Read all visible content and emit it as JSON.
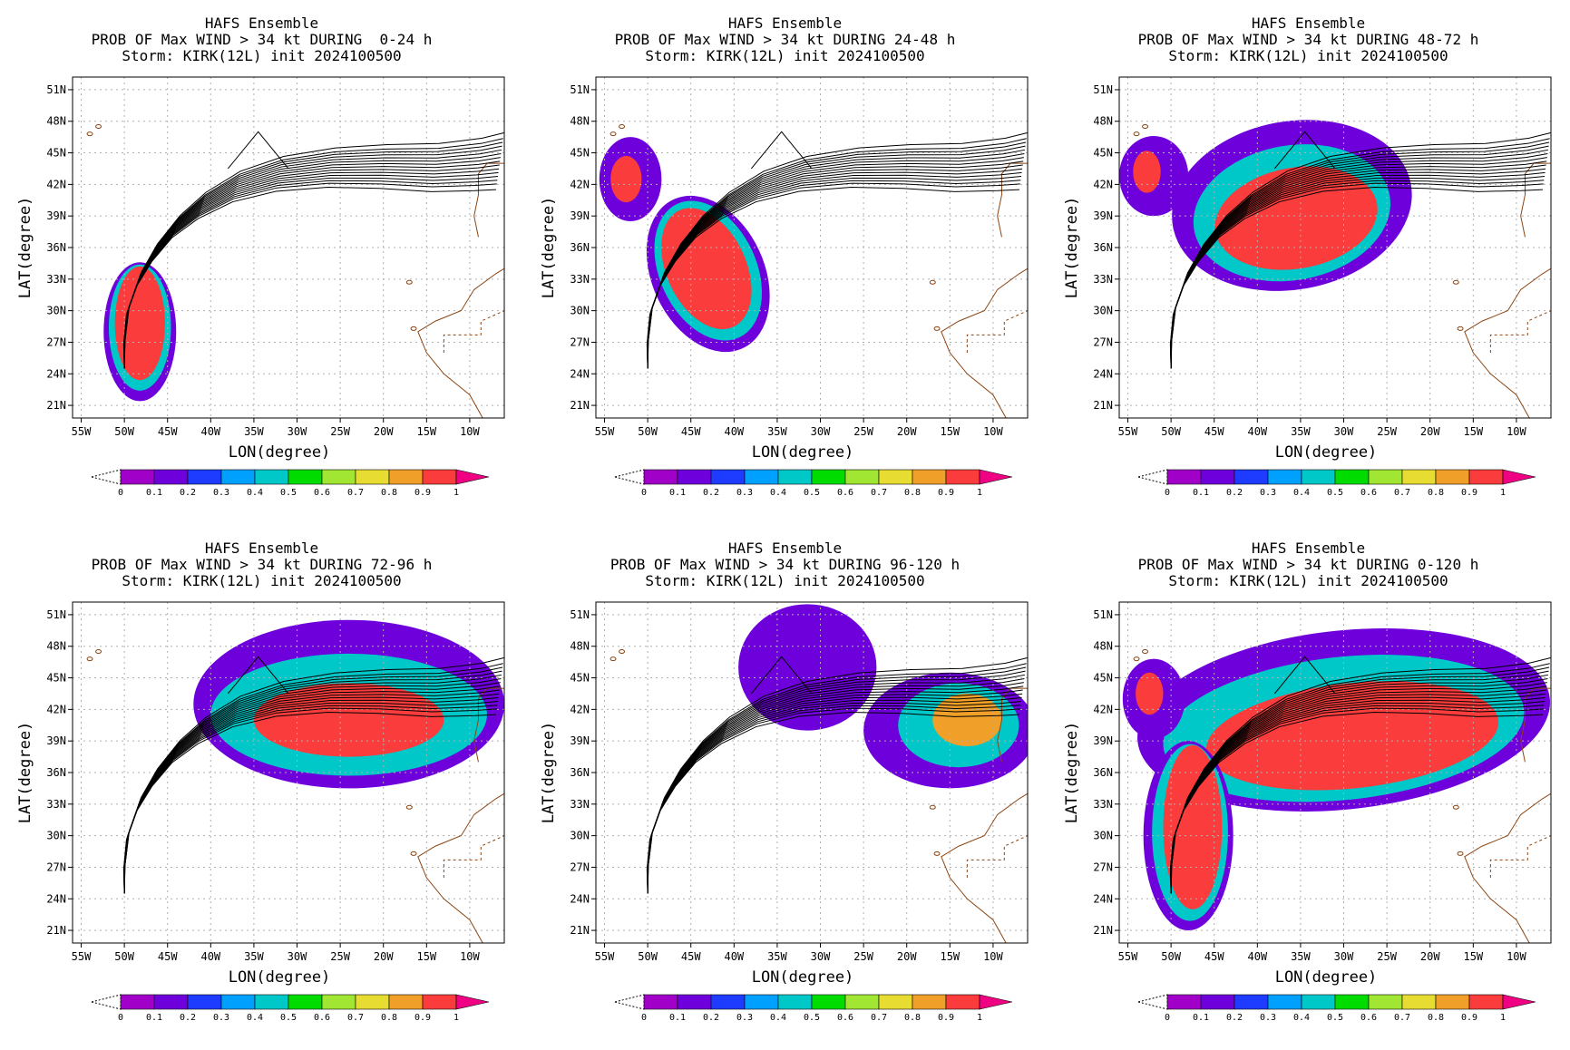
{
  "figure": {
    "panels": [
      {
        "title_line1": "HAFS Ensemble",
        "title_line2": "PROB OF Max WIND > 34 kt DURING  0-24 h",
        "title_line3": "Storm: KIRK(12L) init 2024100500"
      },
      {
        "title_line1": "HAFS Ensemble",
        "title_line2": "PROB OF Max WIND > 34 kt DURING 24-48 h",
        "title_line3": "Storm: KIRK(12L) init 2024100500"
      },
      {
        "title_line1": "HAFS Ensemble",
        "title_line2": "PROB OF Max WIND > 34 kt DURING 48-72 h",
        "title_line3": "Storm: KIRK(12L) init 2024100500"
      },
      {
        "title_line1": "HAFS Ensemble",
        "title_line2": "PROB OF Max WIND > 34 kt DURING 72-96 h",
        "title_line3": "Storm: KIRK(12L) init 2024100500"
      },
      {
        "title_line1": "HAFS Ensemble",
        "title_line2": "PROB OF Max WIND > 34 kt DURING 96-120 h",
        "title_line3": "Storm: KIRK(12L) init 2024100500"
      },
      {
        "title_line1": "HAFS Ensemble",
        "title_line2": "PROB OF Max WIND > 34 kt DURING 0-120 h",
        "title_line3": "Storm: KIRK(12L) init 2024100500"
      }
    ]
  },
  "axes": {
    "xlabel": "LON(degree)",
    "ylabel": "LAT(degree)",
    "lon_ticks": [
      "55W",
      "50W",
      "45W",
      "40W",
      "35W",
      "30W",
      "25W",
      "20W",
      "15W",
      "10W"
    ],
    "lat_ticks": [
      "21N",
      "24N",
      "27N",
      "30N",
      "33N",
      "36N",
      "39N",
      "42N",
      "45N",
      "48N",
      "51N"
    ],
    "lon_range": [
      -56,
      -6
    ],
    "lat_range": [
      19.8,
      52.2
    ]
  },
  "colorbar": {
    "labels": [
      "0",
      "0.1",
      "0.2",
      "0.3",
      "0.4",
      "0.5",
      "0.6",
      "0.7",
      "0.8",
      "0.9",
      "1"
    ],
    "colors": [
      "#a000c8",
      "#6e00dc",
      "#1e3cff",
      "#00a0ff",
      "#00c8c8",
      "#00dc00",
      "#a0e632",
      "#e6dc32",
      "#f0a028",
      "#fa3c3c",
      "#f00082"
    ]
  },
  "chart_data": {
    "type": "heatmap",
    "variable": "Probability of max wind > 34 kt",
    "storm": "KIRK(12L)",
    "init": "2024100500",
    "periods": [
      "0-24 h",
      "24-48 h",
      "48-72 h",
      "72-96 h",
      "96-120 h",
      "0-120 h"
    ],
    "track_centerline": [
      [
        -50.0,
        24.5
      ],
      [
        -50.0,
        27.0
      ],
      [
        -49.6,
        30.0
      ],
      [
        -48.3,
        33.0
      ],
      [
        -46.5,
        35.5
      ],
      [
        -44.0,
        38.0
      ],
      [
        -41.0,
        40.0
      ],
      [
        -37.0,
        41.8
      ],
      [
        -32.0,
        43.0
      ],
      [
        -26.0,
        43.6
      ],
      [
        -20.0,
        43.7
      ],
      [
        -14.0,
        43.6
      ],
      [
        -9.0,
        43.9
      ],
      [
        -6.5,
        44.2
      ]
    ],
    "track_member_offsets": [
      0,
      0.8,
      -0.8,
      1.6,
      -1.6,
      2.4,
      -2.4,
      3.0,
      -3.0,
      1.2,
      -1.2,
      0.4,
      -0.4,
      2.0,
      -2.0
    ],
    "track_excursion": [
      [
        -38.0,
        43.5
      ],
      [
        -34.5,
        47.0
      ],
      [
        -31.0,
        43.5
      ]
    ],
    "ensemble_note": "",
    "blobs": [
      [
        {
          "level": 0.1,
          "lon": -48.2,
          "lat": 28.0,
          "rx": 4.2,
          "ry": 6.6,
          "rot": 0
        },
        {
          "level": 0.4,
          "lon": -48.2,
          "lat": 28.4,
          "rx": 3.6,
          "ry": 6.0,
          "rot": 0
        },
        {
          "level": 0.9,
          "lon": -48.2,
          "lat": 28.8,
          "rx": 2.9,
          "ry": 5.4,
          "rot": 0
        }
      ],
      [
        {
          "level": 0.1,
          "lon": -43.0,
          "lat": 33.5,
          "rx": 6.5,
          "ry": 7.8,
          "rot": -25
        },
        {
          "level": 0.4,
          "lon": -43.0,
          "lat": 33.8,
          "rx": 5.6,
          "ry": 7.0,
          "rot": -25
        },
        {
          "level": 0.9,
          "lon": -43.2,
          "lat": 34.0,
          "rx": 4.6,
          "ry": 6.1,
          "rot": -25
        },
        {
          "level": 0.1,
          "lon": -52.0,
          "lat": 42.5,
          "rx": 3.6,
          "ry": 4.0,
          "rot": 0
        },
        {
          "level": 0.9,
          "lon": -52.5,
          "lat": 42.5,
          "rx": 1.8,
          "ry": 2.2,
          "rot": 0
        }
      ],
      [
        {
          "level": 0.1,
          "lon": -36.0,
          "lat": 40.0,
          "rx": 14.0,
          "ry": 8.0,
          "rot": -10
        },
        {
          "level": 0.4,
          "lon": -36.0,
          "lat": 39.3,
          "rx": 11.5,
          "ry": 6.4,
          "rot": -10
        },
        {
          "level": 0.9,
          "lon": -35.5,
          "lat": 38.8,
          "rx": 9.5,
          "ry": 4.8,
          "rot": -10
        },
        {
          "level": 0.1,
          "lon": -52.0,
          "lat": 42.8,
          "rx": 4.0,
          "ry": 3.8,
          "rot": 0
        },
        {
          "level": 0.9,
          "lon": -52.8,
          "lat": 43.2,
          "rx": 1.6,
          "ry": 2.0,
          "rot": 0
        }
      ],
      [
        {
          "level": 0.1,
          "lon": -24.0,
          "lat": 42.5,
          "rx": 18.0,
          "ry": 8.0,
          "rot": 0
        },
        {
          "level": 0.4,
          "lon": -24.0,
          "lat": 41.5,
          "rx": 16.0,
          "ry": 5.8,
          "rot": 0
        },
        {
          "level": 0.9,
          "lon": -24.0,
          "lat": 41.0,
          "rx": 11.0,
          "ry": 3.5,
          "rot": 0
        }
      ],
      [
        {
          "level": 0.1,
          "lon": -31.5,
          "lat": 46.0,
          "rx": 8.0,
          "ry": 6.0,
          "rot": 0
        },
        {
          "level": 0.1,
          "lon": -15.0,
          "lat": 40.0,
          "rx": 10.0,
          "ry": 5.5,
          "rot": 0
        },
        {
          "level": 0.4,
          "lon": -14.0,
          "lat": 40.5,
          "rx": 7.0,
          "ry": 4.0,
          "rot": 0
        },
        {
          "level": 0.8,
          "lon": -13.0,
          "lat": 41.0,
          "rx": 4.0,
          "ry": 2.5,
          "rot": 0
        }
      ],
      [
        {
          "level": 0.1,
          "lon": -30.0,
          "lat": 41.0,
          "rx": 24.0,
          "ry": 8.5,
          "rot": -6
        },
        {
          "level": 0.4,
          "lon": -30.0,
          "lat": 40.2,
          "rx": 21.0,
          "ry": 6.8,
          "rot": -6
        },
        {
          "level": 0.9,
          "lon": -29.0,
          "lat": 39.5,
          "rx": 17.0,
          "ry": 5.0,
          "rot": -6
        },
        {
          "level": 0.1,
          "lon": -48.0,
          "lat": 30.0,
          "rx": 5.2,
          "ry": 9.0,
          "rot": 0
        },
        {
          "level": 0.4,
          "lon": -47.8,
          "lat": 30.3,
          "rx": 4.4,
          "ry": 8.4,
          "rot": 0
        },
        {
          "level": 0.9,
          "lon": -47.5,
          "lat": 30.8,
          "rx": 3.4,
          "ry": 7.8,
          "rot": 0
        },
        {
          "level": 0.1,
          "lon": -52.0,
          "lat": 43.0,
          "rx": 3.6,
          "ry": 3.8,
          "rot": 0
        },
        {
          "level": 0.9,
          "lon": -52.5,
          "lat": 43.5,
          "rx": 1.6,
          "ry": 2.0,
          "rot": 0
        }
      ]
    ]
  }
}
